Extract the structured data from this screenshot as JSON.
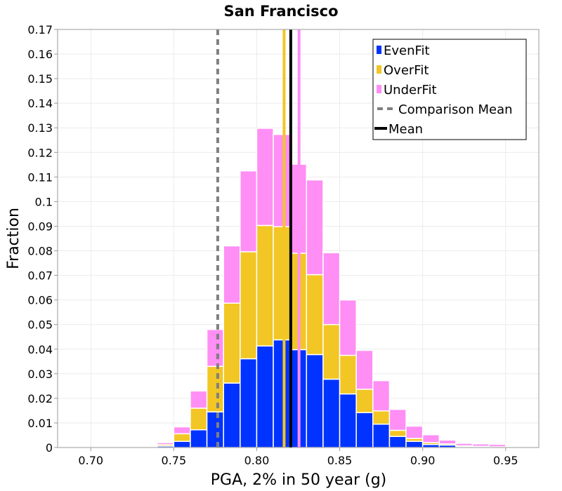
{
  "chart_data": {
    "type": "bar",
    "stacked": true,
    "title": "San Francisco",
    "xlabel": "PGA, 2% in 50 year (g)",
    "ylabel": "Fraction",
    "xlim": [
      0.68,
      0.97
    ],
    "ylim": [
      0,
      0.17
    ],
    "bin_width": 0.01,
    "x_ticks": [
      "0.70",
      "0.75",
      "0.80",
      "0.85",
      "0.90",
      "0.95"
    ],
    "x_tick_values": [
      0.7,
      0.75,
      0.8,
      0.85,
      0.9,
      0.95
    ],
    "y_ticks": [
      "0",
      "0.01",
      "0.02",
      "0.03",
      "0.04",
      "0.05",
      "0.06",
      "0.07",
      "0.08",
      "0.09",
      "0.1",
      "0.11",
      "0.12",
      "0.13",
      "0.14",
      "0.15",
      "0.16",
      "0.17"
    ],
    "y_tick_values": [
      0,
      0.01,
      0.02,
      0.03,
      0.04,
      0.05,
      0.06,
      0.07,
      0.08,
      0.09,
      0.1,
      0.11,
      0.12,
      0.13,
      0.14,
      0.15,
      0.16,
      0.17
    ],
    "bin_centers": [
      0.735,
      0.745,
      0.755,
      0.765,
      0.775,
      0.785,
      0.795,
      0.805,
      0.815,
      0.825,
      0.835,
      0.845,
      0.855,
      0.865,
      0.875,
      0.885,
      0.895,
      0.905,
      0.915,
      0.925,
      0.935,
      0.945,
      0.955
    ],
    "series": [
      {
        "name": "EvenFit",
        "color": "#0033ff",
        "values": [
          0.0002,
          0.0006,
          0.0025,
          0.0072,
          0.0145,
          0.0262,
          0.0361,
          0.0413,
          0.0438,
          0.0398,
          0.0378,
          0.0278,
          0.0218,
          0.0142,
          0.0095,
          0.0045,
          0.0025,
          0.0012,
          0.001,
          0.0004,
          0.0003,
          0.0002,
          0.0001
        ]
      },
      {
        "name": "OverFit",
        "color": "#f2c624",
        "values": [
          0.0002,
          0.0006,
          0.0031,
          0.0088,
          0.0185,
          0.0325,
          0.0435,
          0.049,
          0.046,
          0.0392,
          0.0325,
          0.0222,
          0.0157,
          0.0095,
          0.0054,
          0.0025,
          0.0012,
          0.0008,
          0.0005,
          0.0003,
          0.0002,
          0.0001,
          0
        ]
      },
      {
        "name": "UnderFit",
        "color": "#ff8ef5",
        "values": [
          0.0002,
          0.0008,
          0.0028,
          0.007,
          0.015,
          0.0233,
          0.0329,
          0.0395,
          0.0375,
          0.0362,
          0.0385,
          0.0292,
          0.0225,
          0.0158,
          0.0123,
          0.0085,
          0.005,
          0.0032,
          0.0015,
          0.001,
          0.001,
          0.001,
          0.0004
        ]
      }
    ],
    "lines": {
      "comparison_mean": {
        "name": "Comparison Mean",
        "x": 0.7765,
        "color": "#808080",
        "style": "dashed"
      },
      "mean": {
        "name": "Mean",
        "x": 0.8205,
        "color": "#000000",
        "style": "solid"
      },
      "overfit_mean": {
        "name": "OverFit mean",
        "x": 0.8165,
        "color": "#f2c624",
        "style": "solid"
      },
      "underfit_mean": {
        "name": "UnderFit mean",
        "x": 0.8255,
        "color": "#ff8ef5",
        "style": "solid"
      }
    },
    "legend": {
      "position": "top-right",
      "entries": [
        {
          "label": "EvenFit",
          "color": "#0033ff",
          "kind": "box"
        },
        {
          "label": "OverFit",
          "color": "#f2c624",
          "kind": "box"
        },
        {
          "label": "UnderFit",
          "color": "#ff8ef5",
          "kind": "box"
        },
        {
          "label": "Comparison Mean",
          "color": "#808080",
          "kind": "dash"
        },
        {
          "label": "Mean",
          "color": "#000000",
          "kind": "line"
        }
      ]
    },
    "grid": true
  }
}
